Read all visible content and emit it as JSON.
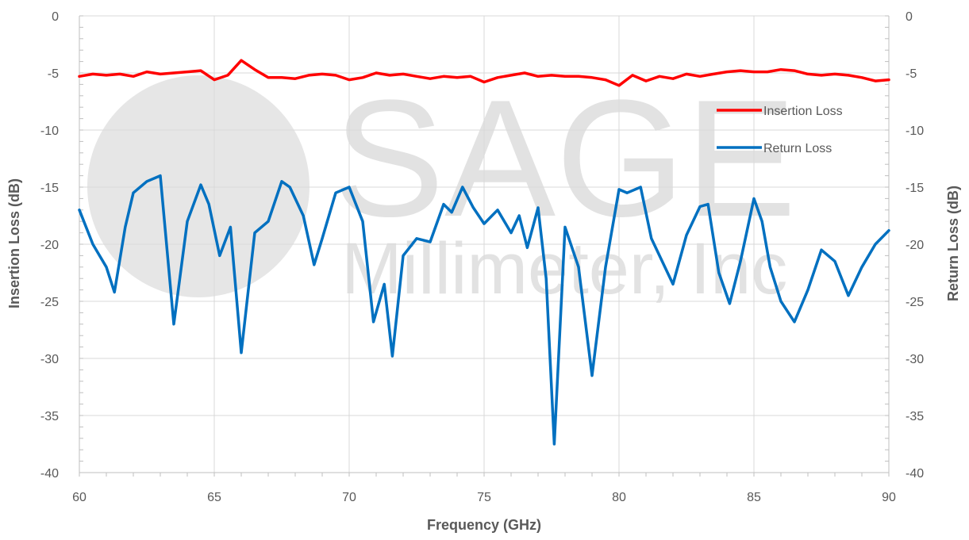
{
  "chart_data": {
    "type": "line",
    "title": "",
    "xlabel": "Frequency (GHz)",
    "ylabel": "Insertion Loss (dB)",
    "y2label": "Return Loss (dB)",
    "xlim": [
      60,
      90
    ],
    "ylim": [
      -40,
      0
    ],
    "y2lim": [
      -40,
      0
    ],
    "x_ticks": [
      60,
      65,
      70,
      75,
      80,
      85,
      90
    ],
    "y_ticks": [
      0,
      -5,
      -10,
      -15,
      -20,
      -25,
      -30,
      -35,
      -40
    ],
    "y2_ticks": [
      0,
      -5,
      -10,
      -15,
      -20,
      -25,
      -30,
      -35,
      -40
    ],
    "grid": true,
    "legend_position": "right-upper",
    "watermark": {
      "text_main": "SAGE",
      "text_sub": "Millimeter, Inc"
    },
    "series": [
      {
        "name": "Insertion Loss",
        "color": "#ff0000",
        "x": [
          60,
          60.5,
          61,
          61.5,
          62,
          62.5,
          63,
          63.5,
          64,
          64.5,
          65,
          65.5,
          66,
          66.5,
          67,
          67.5,
          68,
          68.5,
          69,
          69.5,
          70,
          70.5,
          71,
          71.5,
          72,
          72.5,
          73,
          73.5,
          74,
          74.5,
          75,
          75.5,
          76,
          76.5,
          77,
          77.5,
          78,
          78.5,
          79,
          79.5,
          80,
          80.5,
          81,
          81.5,
          82,
          82.5,
          83,
          83.5,
          84,
          84.5,
          85,
          85.5,
          86,
          86.5,
          87,
          87.5,
          88,
          88.5,
          89,
          89.5,
          90
        ],
        "y": [
          -5.3,
          -5.1,
          -5.2,
          -5.1,
          -5.3,
          -4.9,
          -5.1,
          -5.0,
          -4.9,
          -4.8,
          -5.6,
          -5.2,
          -3.9,
          -4.7,
          -5.4,
          -5.4,
          -5.5,
          -5.2,
          -5.1,
          -5.2,
          -5.6,
          -5.4,
          -5.0,
          -5.2,
          -5.1,
          -5.3,
          -5.5,
          -5.3,
          -5.4,
          -5.3,
          -5.8,
          -5.4,
          -5.2,
          -5.0,
          -5.3,
          -5.2,
          -5.3,
          -5.3,
          -5.4,
          -5.6,
          -6.1,
          -5.2,
          -5.7,
          -5.3,
          -5.5,
          -5.1,
          -5.3,
          -5.1,
          -4.9,
          -4.8,
          -4.9,
          -4.9,
          -4.7,
          -4.8,
          -5.1,
          -5.2,
          -5.1,
          -5.2,
          -5.4,
          -5.7,
          -5.6
        ]
      },
      {
        "name": "Return Loss",
        "color": "#0070c0",
        "x": [
          60,
          60.5,
          61,
          61.3,
          61.7,
          62,
          62.5,
          63,
          63.5,
          64,
          64.5,
          64.8,
          65.2,
          65.6,
          66,
          66.5,
          67,
          67.5,
          67.8,
          68.3,
          68.7,
          69,
          69.5,
          70,
          70.5,
          70.9,
          71.3,
          71.6,
          72,
          72.5,
          73,
          73.5,
          73.8,
          74.2,
          74.6,
          75,
          75.5,
          76,
          76.3,
          76.6,
          77,
          77.3,
          77.6,
          78,
          78.5,
          79,
          79.5,
          80,
          80.3,
          80.8,
          81.2,
          81.7,
          82,
          82.5,
          83,
          83.3,
          83.7,
          84.1,
          84.5,
          85,
          85.3,
          85.6,
          86,
          86.5,
          87,
          87.5,
          88,
          88.5,
          89,
          89.5,
          90
        ],
        "y": [
          -17.0,
          -20.0,
          -22.0,
          -24.2,
          -18.5,
          -15.5,
          -14.5,
          -14.0,
          -27.0,
          -18.0,
          -14.8,
          -16.5,
          -21.0,
          -18.5,
          -29.5,
          -19.0,
          -18.0,
          -14.5,
          -15.0,
          -17.5,
          -21.8,
          -19.5,
          -15.5,
          -15.0,
          -18.0,
          -26.8,
          -23.5,
          -29.8,
          -21.0,
          -19.5,
          -19.8,
          -16.5,
          -17.2,
          -15.0,
          -16.8,
          -18.2,
          -17.0,
          -19.0,
          -17.5,
          -20.3,
          -16.8,
          -23.0,
          -37.5,
          -18.5,
          -22.0,
          -31.5,
          -22.0,
          -15.2,
          -15.5,
          -15.0,
          -19.5,
          -22.0,
          -23.5,
          -19.2,
          -16.7,
          -16.5,
          -22.5,
          -25.2,
          -21.5,
          -16.0,
          -18.0,
          -22.0,
          -25.0,
          -26.8,
          -24.0,
          -20.5,
          -21.5,
          -24.5,
          -22.0,
          -20.0,
          -18.8
        ]
      }
    ]
  }
}
